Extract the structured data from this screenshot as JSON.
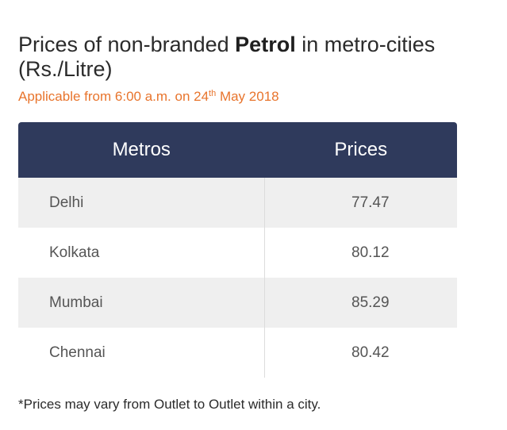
{
  "heading": {
    "prefix": "Prices of non-branded ",
    "bold": "Petrol",
    "suffix": " in metro-cities (Rs./Litre)"
  },
  "subtitle": {
    "before": "Applicable from 6:00 a.m. on 24",
    "sup": "th",
    "after": " May 2018"
  },
  "table": {
    "headers": [
      "Metros",
      "Prices"
    ],
    "rows": [
      {
        "metro": "Delhi",
        "price": "77.47"
      },
      {
        "metro": "Kolkata",
        "price": "80.12"
      },
      {
        "metro": "Mumbai",
        "price": "85.29"
      },
      {
        "metro": "Chennai",
        "price": "80.42"
      }
    ]
  },
  "footnote": "*Prices may vary from Outlet to Outlet within a city.",
  "colors": {
    "header_bg": "#2f3a5c",
    "subtitle": "#e8742c",
    "row_alt": "#efefef"
  }
}
